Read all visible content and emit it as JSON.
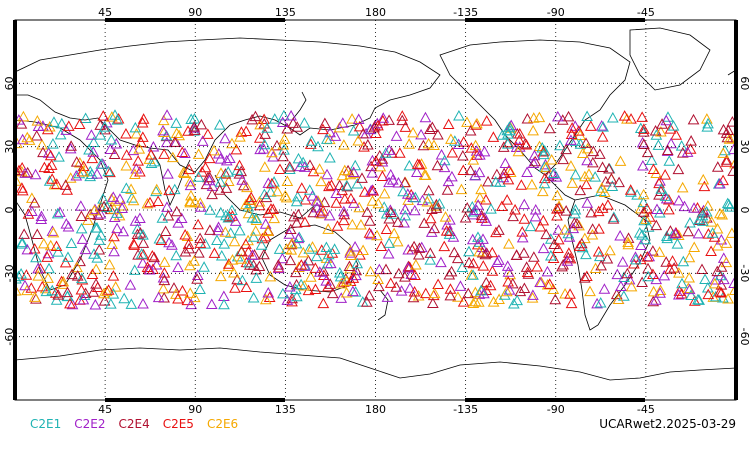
{
  "map": {
    "lon_ticks": [
      "45",
      "90",
      "135",
      "180",
      "-135",
      "-90",
      "-45"
    ],
    "lat_ticks": [
      "60",
      "30",
      "0",
      "-30",
      "-60"
    ],
    "lon_range": [
      0,
      360
    ],
    "lat_range": [
      -90,
      90
    ],
    "grid": "dotted",
    "land_color": "#ffffff",
    "coast_color": "#000000"
  },
  "legend": {
    "items": [
      {
        "label": "C2E1",
        "color": "#1fb3b3"
      },
      {
        "label": "C2E2",
        "color": "#a020c8"
      },
      {
        "label": "C2E4",
        "color": "#b01030"
      },
      {
        "label": "C2E5",
        "color": "#e81010"
      },
      {
        "label": "C2E6",
        "color": "#f5a800"
      }
    ]
  },
  "stamp": "UCARwet2.2025-03-29",
  "observations": {
    "marker": "open-triangle",
    "lat_band": [
      -45,
      45
    ],
    "count_per_satellite": 260
  }
}
